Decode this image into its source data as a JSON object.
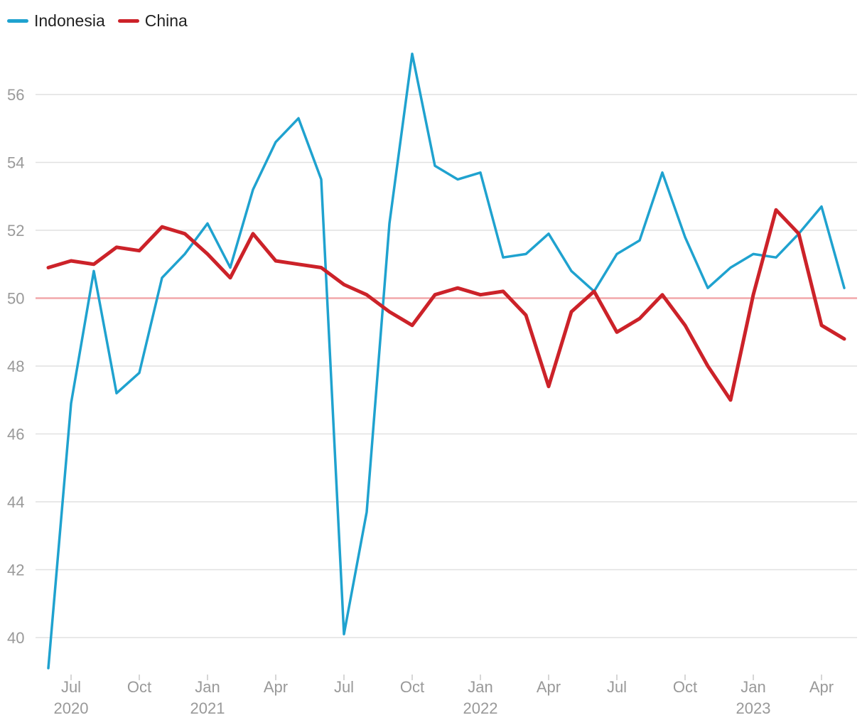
{
  "chart_data": {
    "type": "line",
    "title": "",
    "xlabel": "",
    "ylabel": "",
    "ylim": [
      39,
      57.5
    ],
    "yticks": [
      40,
      42,
      44,
      46,
      48,
      50,
      52,
      54,
      56
    ],
    "reference_line": {
      "y": 50,
      "color": "#f2a7aa"
    },
    "grid": true,
    "legend": "top-left",
    "x": [
      "2020-06",
      "2020-07",
      "2020-08",
      "2020-09",
      "2020-10",
      "2020-11",
      "2020-12",
      "2021-01",
      "2021-02",
      "2021-03",
      "2021-04",
      "2021-05",
      "2021-06",
      "2021-07",
      "2021-08",
      "2021-09",
      "2021-10",
      "2021-11",
      "2021-12",
      "2022-01",
      "2022-02",
      "2022-03",
      "2022-04",
      "2022-05",
      "2022-06",
      "2022-07",
      "2022-08",
      "2022-09",
      "2022-10",
      "2022-11",
      "2022-12",
      "2023-01",
      "2023-02",
      "2023-03",
      "2023-04",
      "2023-05"
    ],
    "xticks": [
      {
        "month": "Jul",
        "year": "2020",
        "x": "2020-07"
      },
      {
        "month": "Oct",
        "year": "",
        "x": "2020-10"
      },
      {
        "month": "Jan",
        "year": "2021",
        "x": "2021-01"
      },
      {
        "month": "Apr",
        "year": "",
        "x": "2021-04"
      },
      {
        "month": "Jul",
        "year": "",
        "x": "2021-07"
      },
      {
        "month": "Oct",
        "year": "",
        "x": "2021-10"
      },
      {
        "month": "Jan",
        "year": "2022",
        "x": "2022-01"
      },
      {
        "month": "Apr",
        "year": "",
        "x": "2022-04"
      },
      {
        "month": "Jul",
        "year": "",
        "x": "2022-07"
      },
      {
        "month": "Oct",
        "year": "",
        "x": "2022-10"
      },
      {
        "month": "Jan",
        "year": "2023",
        "x": "2023-01"
      },
      {
        "month": "Apr",
        "year": "",
        "x": "2023-04"
      }
    ],
    "series": [
      {
        "name": "Indonesia",
        "color": "#1fa2cf",
        "values": [
          39.1,
          46.9,
          50.8,
          47.2,
          47.8,
          50.6,
          51.3,
          52.2,
          50.9,
          53.2,
          54.6,
          55.3,
          53.5,
          40.1,
          43.7,
          52.2,
          57.2,
          53.9,
          53.5,
          53.7,
          51.2,
          51.3,
          51.9,
          50.8,
          50.2,
          51.3,
          51.7,
          53.7,
          51.8,
          50.3,
          50.9,
          51.3,
          51.2,
          51.9,
          52.7,
          50.3
        ]
      },
      {
        "name": "China",
        "color": "#cc2229",
        "values": [
          50.9,
          51.1,
          51.0,
          51.5,
          51.4,
          52.1,
          51.9,
          51.3,
          50.6,
          51.9,
          51.1,
          51.0,
          50.9,
          50.4,
          50.1,
          49.6,
          49.2,
          50.1,
          50.3,
          50.1,
          50.2,
          49.5,
          47.4,
          49.6,
          50.2,
          49.0,
          49.4,
          50.1,
          49.2,
          48.0,
          47.0,
          50.1,
          52.6,
          51.9,
          49.2,
          48.8
        ]
      }
    ]
  }
}
